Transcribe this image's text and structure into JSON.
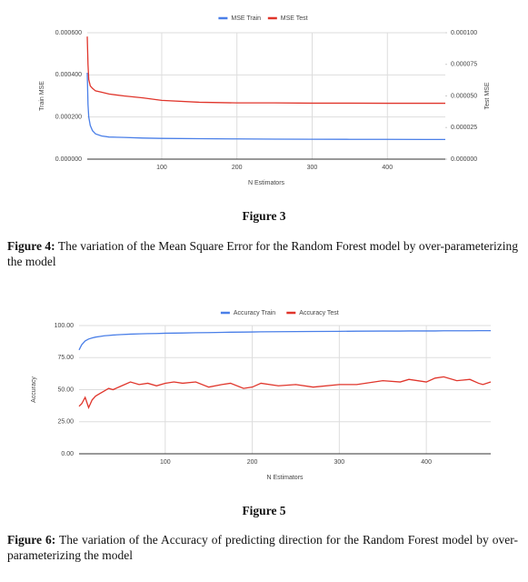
{
  "chart_data": [
    {
      "type": "line",
      "x_label": "N Estimators",
      "y_label": "Train MSE",
      "y2_label": "Test MSE",
      "legend": "top",
      "grid": true,
      "x": [
        1,
        2,
        3,
        5,
        8,
        12,
        20,
        30,
        50,
        75,
        100,
        150,
        200,
        250,
        300,
        350,
        400,
        450,
        477
      ],
      "series": [
        {
          "name": "MSE Train",
          "color": "#4a7fe8",
          "values": [
            0.00041,
            0.00026,
            0.0002,
            0.00016,
            0.000135,
            0.00012,
            0.00011,
            0.000105,
            0.000103,
            0.0001,
            9.85e-05,
            9.7e-05,
            9.6e-05,
            9.5e-05,
            9.45e-05,
            9.4e-05,
            9.4e-05,
            9.35e-05,
            9.35e-05
          ]
        },
        {
          "name": "MSE Test",
          "color": "#e0352b",
          "axis": "y2",
          "values": [
            9.7e-05,
            7.5e-05,
            6.3e-05,
            5.8e-05,
            5.6e-05,
            5.4e-05,
            5.3e-05,
            5.15e-05,
            5e-05,
            4.85e-05,
            4.65e-05,
            4.5e-05,
            4.45e-05,
            4.45e-05,
            4.43e-05,
            4.43e-05,
            4.42e-05,
            4.42e-05,
            4.42e-05
          ]
        }
      ],
      "xlim": [
        1,
        477
      ],
      "xticks": [
        100,
        200,
        300,
        400
      ],
      "ylim": [
        0,
        0.0006
      ],
      "yticks": [
        {
          "value": 0,
          "label": "0.000000"
        },
        {
          "value": 0.0002,
          "label": "0.000200"
        },
        {
          "value": 0.0004,
          "label": "0.000400"
        },
        {
          "value": 0.0006,
          "label": "0.000600"
        }
      ],
      "y2lim": [
        0,
        0.0001
      ],
      "y2ticks": [
        {
          "value": 0,
          "label": "0.000000"
        },
        {
          "value": 2.5e-05,
          "label": "0.000025"
        },
        {
          "value": 5e-05,
          "label": "0.000050"
        },
        {
          "value": 7.5e-05,
          "label": "0.000075"
        },
        {
          "value": 0.0001,
          "label": "0.000100"
        }
      ]
    },
    {
      "type": "line",
      "x_label": "N Estimators",
      "y_label": "Accuracy",
      "legend": "top",
      "grid": true,
      "x": [
        1,
        4,
        8,
        12,
        16,
        20,
        25,
        30,
        35,
        40,
        50,
        60,
        70,
        80,
        90,
        100,
        110,
        120,
        135,
        150,
        165,
        175,
        190,
        200,
        210,
        230,
        250,
        270,
        300,
        320,
        350,
        370,
        380,
        400,
        410,
        420,
        435,
        450,
        460,
        465,
        474
      ],
      "series": [
        {
          "name": "Accuracy Train",
          "color": "#4a7fe8",
          "values": [
            81,
            85,
            88,
            89.5,
            90.3,
            91,
            91.5,
            92,
            92.3,
            92.6,
            93,
            93.3,
            93.5,
            93.7,
            93.8,
            94,
            94.1,
            94.2,
            94.4,
            94.5,
            94.7,
            94.8,
            94.9,
            95,
            95.1,
            95.2,
            95.3,
            95.4,
            95.5,
            95.6,
            95.7,
            95.7,
            95.8,
            95.8,
            95.8,
            95.9,
            95.9,
            95.9,
            96,
            96,
            96
          ]
        },
        {
          "name": "Accuracy Test",
          "color": "#e0352b",
          "values": [
            37,
            39,
            44,
            36,
            42,
            45,
            47,
            49,
            51,
            50,
            53,
            56,
            54,
            55,
            53,
            55,
            56,
            55,
            56,
            52,
            54,
            55,
            51,
            52,
            55,
            53,
            54,
            52,
            54,
            54,
            57,
            56,
            58,
            56,
            59,
            60,
            57,
            58,
            55,
            54,
            56
          ]
        }
      ],
      "xlim": [
        1,
        474
      ],
      "xticks": [
        100,
        200,
        300,
        400
      ],
      "ylim": [
        0,
        100
      ],
      "yticks": [
        {
          "value": 0,
          "label": "0.00"
        },
        {
          "value": 25,
          "label": "25.00"
        },
        {
          "value": 50,
          "label": "50.00"
        },
        {
          "value": 75,
          "label": "75.00"
        },
        {
          "value": 100,
          "label": "100.00"
        }
      ]
    }
  ],
  "captions": [
    {
      "text": "Figure 3"
    },
    {
      "label": "Figure 4:",
      "text": "The variation of the Mean Square Error for the Random Forest model by over-parameterizing the model"
    },
    {
      "text": "Figure 5"
    },
    {
      "label": "Figure 6:",
      "text": "The variation of the Accuracy of predicting direction for the Random Forest model by over-parameterizing the model"
    }
  ]
}
